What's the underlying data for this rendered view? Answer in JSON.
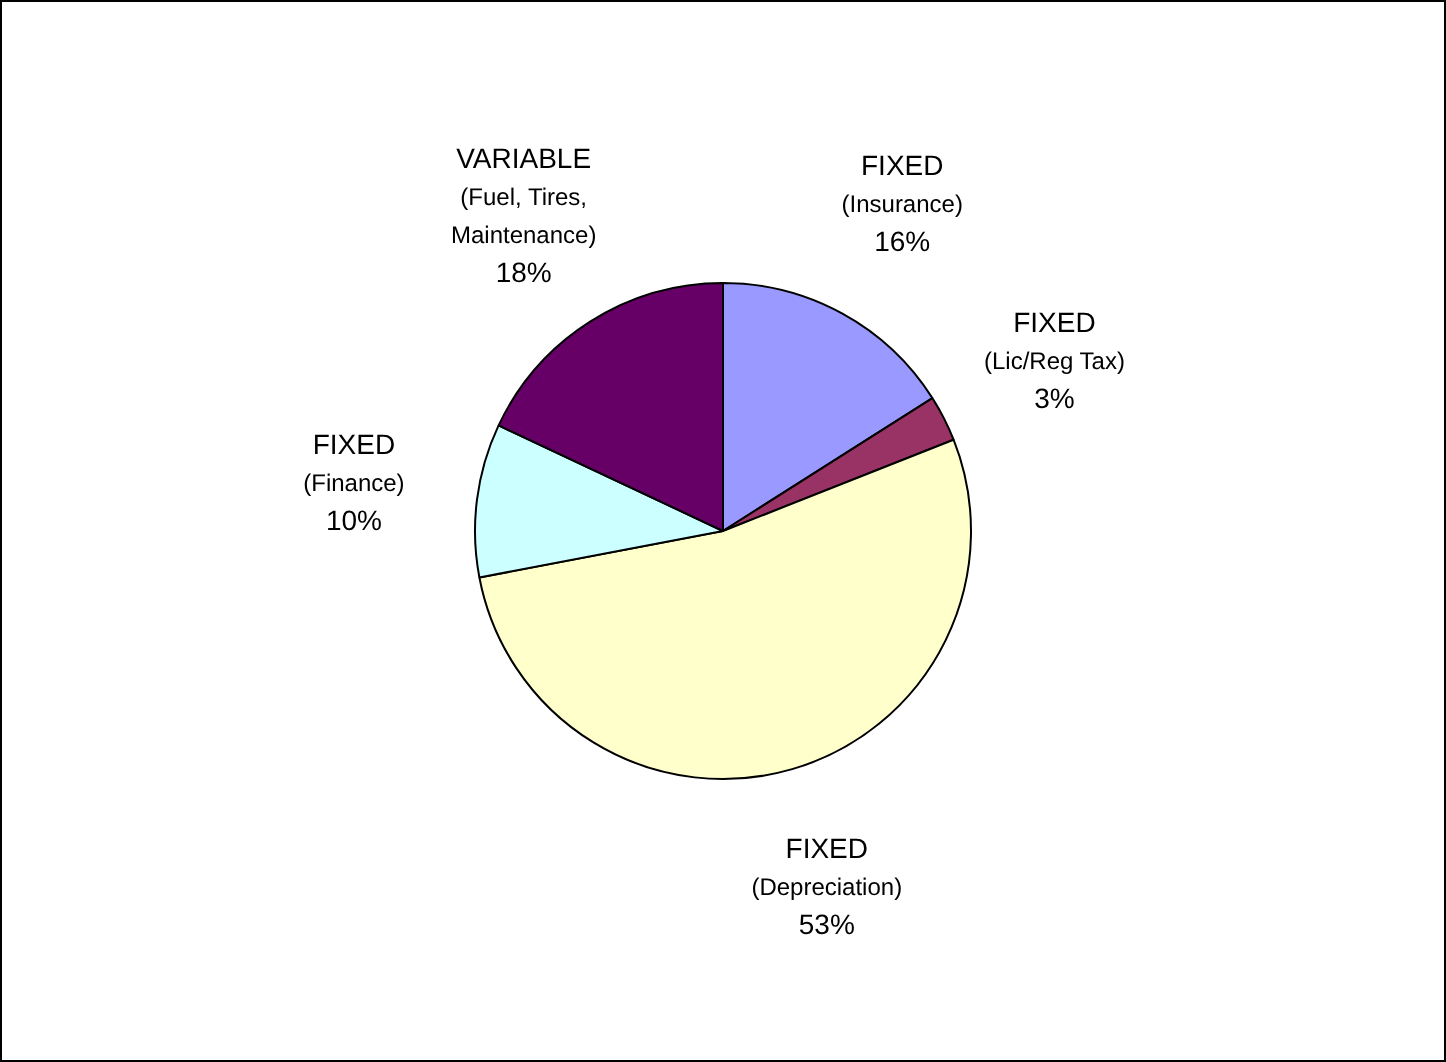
{
  "chart_data": {
    "type": "pie",
    "categories": [
      "FIXED\n(Insurance)",
      "FIXED\n(Lic/Reg Tax)",
      "FIXED\n(Depreciation)",
      "FIXED\n(Finance)",
      "VARIABLE\n(Fuel, Tires,\nMaintenance)"
    ],
    "values": [
      16,
      3,
      53,
      10,
      18
    ],
    "colors": [
      "#9999ff",
      "#993366",
      "#ffffcc",
      "#ccffff",
      "#660066"
    ],
    "value_labels": [
      "16%",
      "3%",
      "53%",
      "10%",
      "18%"
    ],
    "legend": false
  }
}
